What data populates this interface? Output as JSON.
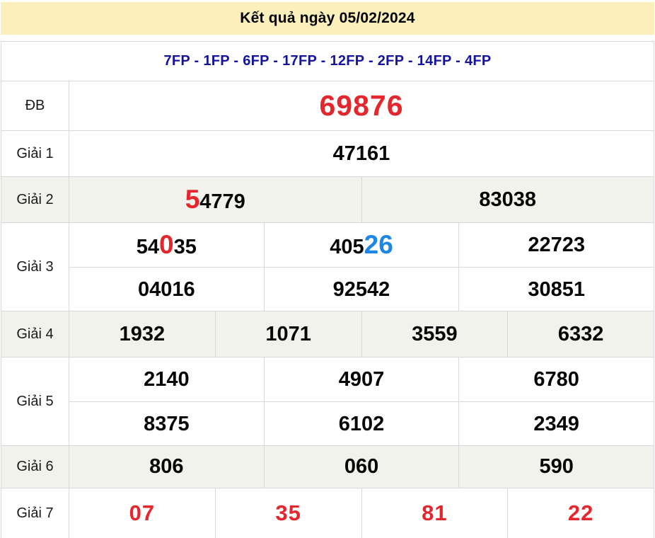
{
  "title": "Kết quả ngày 05/02/2024",
  "stations_line": "7FP - 1FP - 6FP - 17FP - 12FP - 2FP - 14FP - 4FP",
  "colors": {
    "header_bg": "#fbefbb",
    "red": "#e5262c",
    "blue": "#1e87e6",
    "navy": "#14149e",
    "band": "#f2f2ed",
    "border": "#d9d9d9"
  },
  "prizes": [
    {
      "label": "ĐB",
      "key": "db",
      "banded": false,
      "lines": [
        [
          [
            {
              "t": "69876"
            }
          ]
        ]
      ]
    },
    {
      "label": "Giải 1",
      "key": "g1",
      "banded": false,
      "lines": [
        [
          [
            {
              "t": "47161"
            }
          ]
        ]
      ]
    },
    {
      "label": "Giải 2",
      "key": "g2",
      "banded": true,
      "lines": [
        [
          [
            {
              "t": "5",
              "c": "red"
            },
            {
              "t": "4779"
            }
          ],
          [
            {
              "t": "83038"
            }
          ]
        ]
      ]
    },
    {
      "label": "Giải 3",
      "key": "g3",
      "banded": false,
      "lines": [
        [
          [
            {
              "t": "54"
            },
            {
              "t": "0",
              "c": "red"
            },
            {
              "t": "35"
            }
          ],
          [
            {
              "t": "405"
            },
            {
              "t": "26",
              "c": "blue"
            }
          ],
          [
            {
              "t": "22723"
            }
          ]
        ],
        [
          [
            {
              "t": "04016"
            }
          ],
          [
            {
              "t": "92542"
            }
          ],
          [
            {
              "t": "30851"
            }
          ]
        ]
      ]
    },
    {
      "label": "Giải 4",
      "key": "g4",
      "banded": true,
      "lines": [
        [
          [
            {
              "t": "1932"
            }
          ],
          [
            {
              "t": "1071"
            }
          ],
          [
            {
              "t": "3559"
            }
          ],
          [
            {
              "t": "6332"
            }
          ]
        ]
      ]
    },
    {
      "label": "Giải 5",
      "key": "g5",
      "banded": false,
      "lines": [
        [
          [
            {
              "t": "2140"
            }
          ],
          [
            {
              "t": "4907"
            }
          ],
          [
            {
              "t": "6780"
            }
          ]
        ],
        [
          [
            {
              "t": "8375"
            }
          ],
          [
            {
              "t": "6102"
            }
          ],
          [
            {
              "t": "2349"
            }
          ]
        ]
      ]
    },
    {
      "label": "Giải 6",
      "key": "g6",
      "banded": true,
      "lines": [
        [
          [
            {
              "t": "806"
            }
          ],
          [
            {
              "t": "060"
            }
          ],
          [
            {
              "t": "590"
            }
          ]
        ]
      ]
    },
    {
      "label": "Giải 7",
      "key": "g7",
      "banded": false,
      "lines": [
        [
          [
            {
              "t": "07"
            }
          ],
          [
            {
              "t": "35"
            }
          ],
          [
            {
              "t": "81"
            }
          ],
          [
            {
              "t": "22"
            }
          ]
        ]
      ]
    }
  ]
}
